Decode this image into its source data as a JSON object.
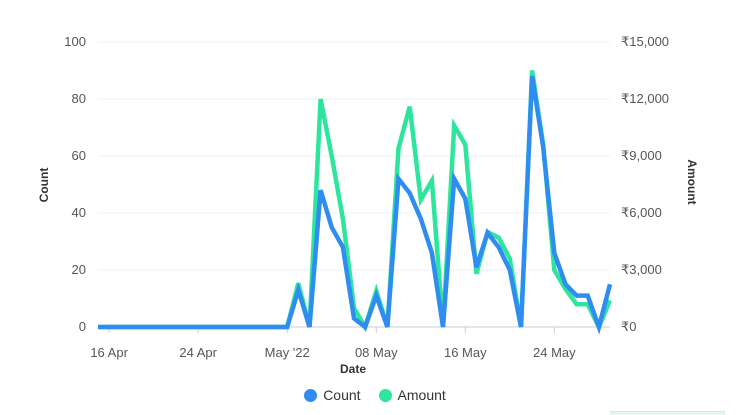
{
  "chart_data": {
    "type": "line",
    "xlabel": "Date",
    "ylabel_left": "Count",
    "ylabel_right": "Amount",
    "y_left_range": [
      0,
      100
    ],
    "y_right_range": [
      0,
      15000
    ],
    "y_left_ticks": [
      "0",
      "20",
      "40",
      "60",
      "80",
      "100"
    ],
    "y_right_ticks": [
      "₹0",
      "₹3,000",
      "₹6,000",
      "₹9,000",
      "₹12,000",
      "₹15,000"
    ],
    "x_tick_labels": [
      "16 Apr",
      "24 Apr",
      "May '22",
      "08 May",
      "16 May",
      "24 May"
    ],
    "x": [
      "2022-04-15",
      "2022-04-16",
      "2022-04-17",
      "2022-04-18",
      "2022-04-19",
      "2022-04-20",
      "2022-04-21",
      "2022-04-22",
      "2022-04-23",
      "2022-04-24",
      "2022-04-25",
      "2022-04-26",
      "2022-04-27",
      "2022-04-28",
      "2022-04-29",
      "2022-04-30",
      "2022-05-01",
      "2022-05-02",
      "2022-05-03",
      "2022-05-04",
      "2022-05-05",
      "2022-05-06",
      "2022-05-07",
      "2022-05-08",
      "2022-05-09",
      "2022-05-10",
      "2022-05-11",
      "2022-05-12",
      "2022-05-13",
      "2022-05-14",
      "2022-05-15",
      "2022-05-16",
      "2022-05-17",
      "2022-05-18",
      "2022-05-19",
      "2022-05-20",
      "2022-05-21",
      "2022-05-22",
      "2022-05-23",
      "2022-05-24",
      "2022-05-25",
      "2022-05-26",
      "2022-05-27",
      "2022-05-28",
      "2022-05-29",
      "2022-05-30",
      "2022-05-31"
    ],
    "grid": "horizontal",
    "legend_position": "bottom-center",
    "series": [
      {
        "name": "Count",
        "axis": "left",
        "color": "#2f8cf0",
        "values": [
          0,
          0,
          0,
          0,
          0,
          0,
          0,
          0,
          0,
          0,
          0,
          0,
          0,
          0,
          0,
          0,
          0,
          0,
          13,
          0,
          48,
          35,
          28,
          3,
          0,
          11,
          0,
          52,
          47,
          38,
          26,
          0,
          52,
          45,
          21,
          33,
          28,
          20,
          0,
          88,
          63,
          26,
          15,
          11,
          11,
          0,
          15
        ]
      },
      {
        "name": "Amount",
        "axis": "right",
        "color": "#2ee59d",
        "values": [
          0,
          0,
          0,
          0,
          0,
          0,
          0,
          0,
          0,
          0,
          0,
          0,
          0,
          0,
          0,
          0,
          0,
          0,
          2300,
          0,
          12000,
          9000,
          5700,
          1000,
          0,
          1900,
          0,
          9400,
          11600,
          6700,
          7700,
          0,
          10600,
          9600,
          2800,
          5000,
          4700,
          3600,
          0,
          13500,
          9600,
          3000,
          2000,
          1200,
          1200,
          0,
          1400
        ]
      }
    ]
  }
}
